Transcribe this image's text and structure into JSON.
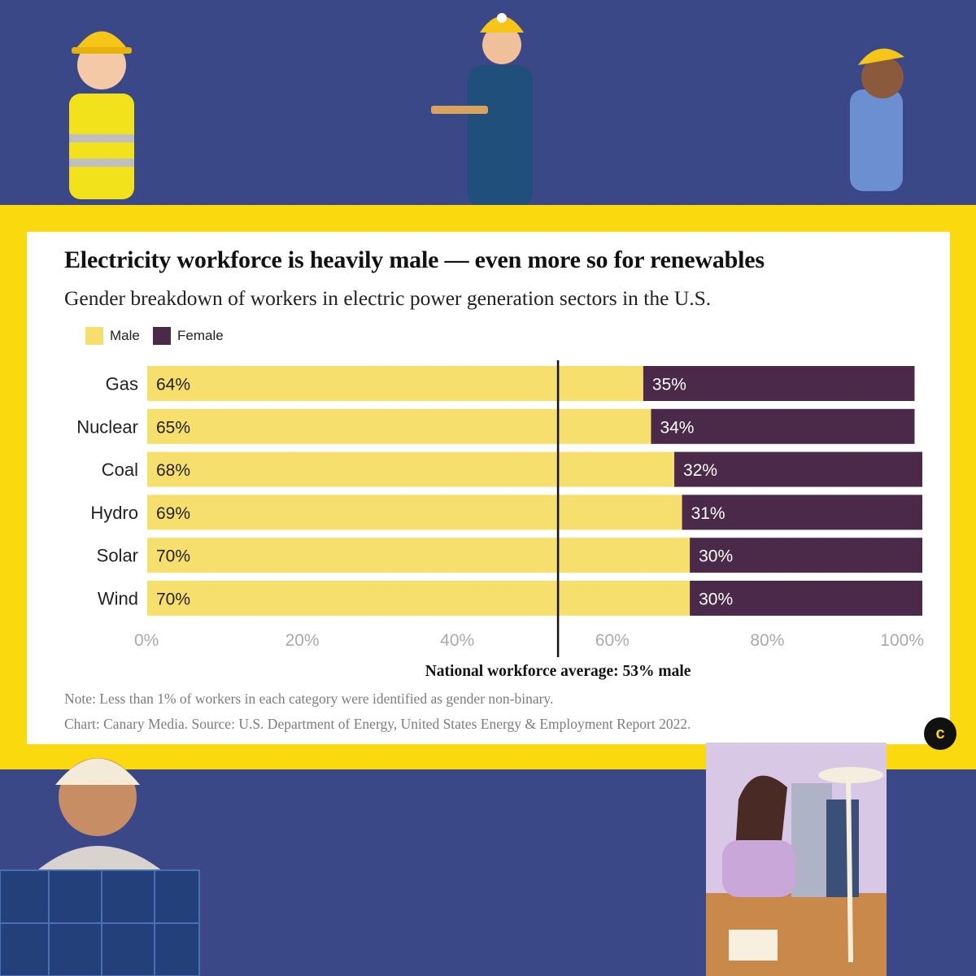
{
  "title": "Electricity workforce is heavily male — even more so for renewables",
  "subtitle": "Gender breakdown of workers in electric power generation sectors in the U.S.",
  "legend": {
    "male": "Male",
    "female": "Female"
  },
  "note": "Note: Less than 1% of workers in each category were identified as gender non-binary.",
  "source": "Chart: Canary Media. Source: U.S. Department of Energy, United States Energy & Employment Report 2022.",
  "logo_letter": "c",
  "colors": {
    "male": "#f7df6e",
    "female": "#4a2a48",
    "frame": "#fad90e",
    "background": "#3b4888"
  },
  "chart_data": {
    "type": "bar",
    "orientation": "horizontal",
    "stacked": true,
    "categories": [
      "Gas",
      "Nuclear",
      "Coal",
      "Hydro",
      "Solar",
      "Wind"
    ],
    "series": [
      {
        "name": "Male",
        "values": [
          64,
          65,
          68,
          69,
          70,
          70
        ],
        "labels": [
          "64%",
          "65%",
          "68%",
          "69%",
          "70%",
          "70%"
        ]
      },
      {
        "name": "Female",
        "values": [
          35,
          34,
          32,
          31,
          30,
          30
        ],
        "labels": [
          "35%",
          "34%",
          "32%",
          "31%",
          "30%",
          "30%"
        ]
      }
    ],
    "xlim": [
      0,
      100
    ],
    "xticks": [
      0,
      20,
      40,
      60,
      80,
      100
    ],
    "xtick_labels": [
      "0%",
      "20%",
      "40%",
      "60%",
      "80%",
      "100%"
    ],
    "reference_line": {
      "value": 53,
      "label": "National workforce average: 53% male"
    },
    "legend_position": "top-left"
  }
}
